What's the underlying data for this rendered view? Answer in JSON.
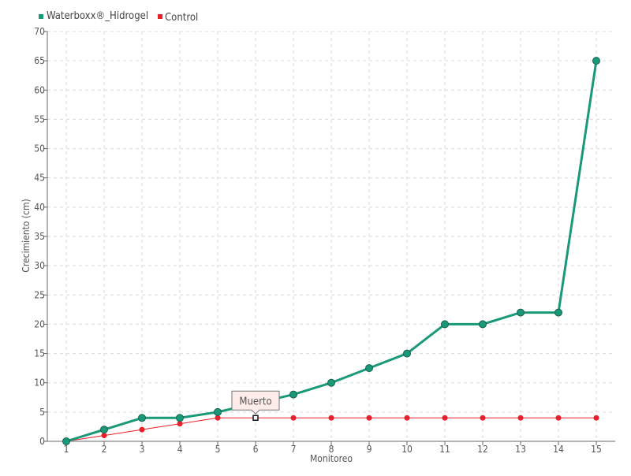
{
  "chart_data": {
    "type": "line",
    "x": [
      1,
      2,
      3,
      4,
      5,
      6,
      7,
      8,
      9,
      10,
      11,
      12,
      13,
      14,
      15
    ],
    "xlabel": "Monitoreo",
    "ylabel": "Crecimiento (cm)",
    "ylim": [
      0,
      70
    ],
    "yticks": [
      0,
      5,
      10,
      15,
      20,
      25,
      30,
      35,
      40,
      45,
      50,
      55,
      60,
      65,
      70
    ],
    "grid": true,
    "legend_position": "top-left",
    "series": [
      {
        "name": "Waterboxx®_Hidrogel",
        "color": "#1a9979",
        "values": [
          0,
          2,
          4,
          4,
          5,
          6.5,
          8,
          10,
          12.5,
          15,
          20,
          20,
          22,
          22,
          65
        ]
      },
      {
        "name": "Control",
        "color": "#e8212b",
        "values": [
          0,
          1,
          2,
          3,
          4,
          4,
          4,
          4,
          4,
          4,
          4,
          4,
          4,
          4,
          4
        ]
      }
    ],
    "annotation": {
      "text": "Muerto",
      "x": 6,
      "y": 4,
      "series": "Control"
    }
  }
}
